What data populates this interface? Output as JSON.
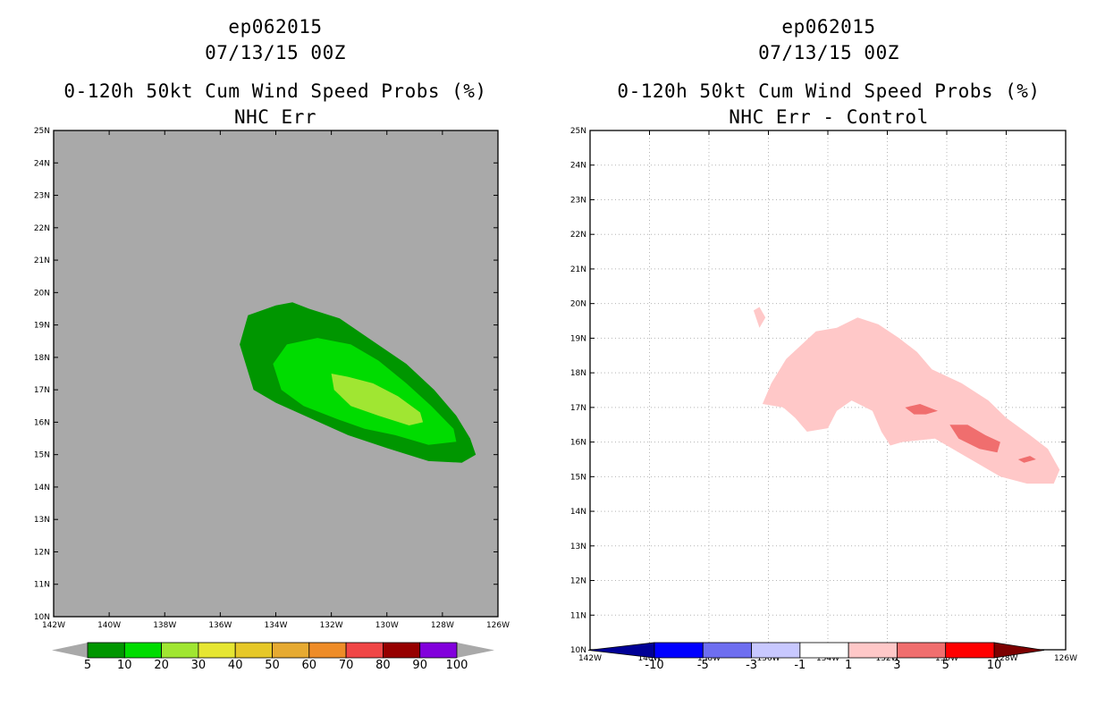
{
  "chart_data": [
    {
      "type": "filled-contour-map",
      "title_lines": [
        "ep062015",
        "07/13/15 00Z",
        "0-120h 50kt Cum Wind Speed Probs (%)",
        "NHC Err"
      ],
      "background_color": "#a9a9a9",
      "x_ticks": [
        "142W",
        "140W",
        "138W",
        "136W",
        "134W",
        "132W",
        "130W",
        "128W",
        "126W"
      ],
      "y_ticks": [
        "10N",
        "11N",
        "12N",
        "13N",
        "14N",
        "15N",
        "16N",
        "17N",
        "18N",
        "19N",
        "20N",
        "21N",
        "22N",
        "23N",
        "24N",
        "25N"
      ],
      "lon_range": [
        -142,
        -126
      ],
      "lat_range": [
        10,
        25
      ],
      "colorbar": {
        "levels": [
          "5",
          "10",
          "20",
          "30",
          "40",
          "50",
          "60",
          "70",
          "80",
          "90",
          "100"
        ],
        "colors": [
          "#009600",
          "#00dc00",
          "#a0e632",
          "#e6e632",
          "#e6c828",
          "#e6aa32",
          "#ee8c28",
          "#f04646",
          "#960000",
          "#8200dc"
        ]
      },
      "regions": [
        {
          "level": "5-10",
          "color": "#009600",
          "points": [
            [
              -135.3,
              18.4
            ],
            [
              -135,
              19.3
            ],
            [
              -134,
              19.6
            ],
            [
              -133.4,
              19.7
            ],
            [
              -132.8,
              19.5
            ],
            [
              -131.7,
              19.2
            ],
            [
              -130.5,
              18.5
            ],
            [
              -129.3,
              17.8
            ],
            [
              -128.3,
              17
            ],
            [
              -127.5,
              16.2
            ],
            [
              -127,
              15.5
            ],
            [
              -126.8,
              15
            ],
            [
              -127.3,
              14.75
            ],
            [
              -128.5,
              14.8
            ],
            [
              -130,
              15.2
            ],
            [
              -131.4,
              15.6
            ],
            [
              -132.7,
              16.1
            ],
            [
              -134,
              16.6
            ],
            [
              -134.8,
              17
            ]
          ]
        },
        {
          "level": "10-20",
          "color": "#00dc00",
          "points": [
            [
              -134.1,
              17.8
            ],
            [
              -133.6,
              18.4
            ],
            [
              -132.5,
              18.6
            ],
            [
              -131.3,
              18.4
            ],
            [
              -130.3,
              17.9
            ],
            [
              -129.3,
              17.2
            ],
            [
              -128.4,
              16.5
            ],
            [
              -127.6,
              15.8
            ],
            [
              -127.5,
              15.4
            ],
            [
              -128.5,
              15.3
            ],
            [
              -129.7,
              15.6
            ],
            [
              -130.8,
              15.8
            ],
            [
              -131.8,
              16.1
            ],
            [
              -133,
              16.5
            ],
            [
              -133.8,
              17
            ]
          ]
        },
        {
          "level": "20-30",
          "color": "#a0e632",
          "points": [
            [
              -132,
              17.5
            ],
            [
              -131.4,
              17.4
            ],
            [
              -130.5,
              17.2
            ],
            [
              -129.6,
              16.8
            ],
            [
              -128.8,
              16.3
            ],
            [
              -128.7,
              16
            ],
            [
              -129.2,
              15.9
            ],
            [
              -130.3,
              16.2
            ],
            [
              -131.3,
              16.5
            ],
            [
              -131.9,
              17
            ]
          ]
        }
      ]
    },
    {
      "type": "filled-contour-map",
      "title_lines": [
        "ep062015",
        "07/13/15 00Z",
        "0-120h 50kt Cum Wind Speed Probs (%)",
        "NHC Err - Control"
      ],
      "background_color": "#ffffff",
      "grid": true,
      "x_ticks": [
        "142W",
        "140W",
        "138W",
        "136W",
        "134W",
        "132W",
        "130W",
        "128W",
        "126W"
      ],
      "y_ticks": [
        "10N",
        "11N",
        "12N",
        "13N",
        "14N",
        "15N",
        "16N",
        "17N",
        "18N",
        "19N",
        "20N",
        "21N",
        "22N",
        "23N",
        "24N",
        "25N"
      ],
      "lon_range": [
        -142,
        -126
      ],
      "lat_range": [
        10,
        25
      ],
      "colorbar": {
        "levels": [
          "-10",
          "-5",
          "-3",
          "-1",
          "1",
          "3",
          "5",
          "10"
        ],
        "colors": [
          "#000096",
          "#0000ff",
          "#6e6ef0",
          "#c8c8ff",
          "#ffffff",
          "#ffc8c8",
          "#f06e6e",
          "#ff0000",
          "#7d0000"
        ]
      },
      "regions": [
        {
          "level": "1-3",
          "color": "#ffc8c8",
          "points": [
            [
              -136.2,
              17.1
            ],
            [
              -135.9,
              17.7
            ],
            [
              -135.4,
              18.4
            ],
            [
              -134.9,
              18.8
            ],
            [
              -134.4,
              19.2
            ],
            [
              -133.7,
              19.3
            ],
            [
              -133,
              19.6
            ],
            [
              -132.3,
              19.4
            ],
            [
              -131.6,
              19
            ],
            [
              -131,
              18.6
            ],
            [
              -130.5,
              18.1
            ],
            [
              -129.5,
              17.7
            ],
            [
              -128.6,
              17.2
            ],
            [
              -128,
              16.7
            ],
            [
              -127.2,
              16.2
            ],
            [
              -126.6,
              15.8
            ],
            [
              -126.2,
              15.2
            ],
            [
              -126.4,
              14.8
            ],
            [
              -127.3,
              14.8
            ],
            [
              -128.2,
              15
            ],
            [
              -129,
              15.4
            ],
            [
              -129.8,
              15.8
            ],
            [
              -130.4,
              16.1
            ],
            [
              -131.5,
              16
            ],
            [
              -131.9,
              15.9
            ],
            [
              -132.2,
              16.3
            ],
            [
              -132.5,
              16.9
            ],
            [
              -133.2,
              17.2
            ],
            [
              -133.7,
              16.9
            ],
            [
              -134,
              16.4
            ],
            [
              -134.7,
              16.3
            ],
            [
              -135.1,
              16.7
            ],
            [
              -135.5,
              17
            ]
          ]
        },
        {
          "level": "1-3",
          "color": "#ffc8c8",
          "points": [
            [
              -136.5,
              19.8
            ],
            [
              -136.3,
              19.9
            ],
            [
              -136.1,
              19.6
            ],
            [
              -136.3,
              19.3
            ]
          ]
        },
        {
          "level": "3-5",
          "color": "#f06e6e",
          "points": [
            [
              -131.4,
              17
            ],
            [
              -130.9,
              17.1
            ],
            [
              -130.3,
              16.9
            ],
            [
              -130.7,
              16.8
            ],
            [
              -131.1,
              16.8
            ]
          ]
        },
        {
          "level": "3-5",
          "color": "#f06e6e",
          "points": [
            [
              -129.9,
              16.5
            ],
            [
              -129.3,
              16.5
            ],
            [
              -128.7,
              16.2
            ],
            [
              -128.2,
              16
            ],
            [
              -128.3,
              15.7
            ],
            [
              -128.9,
              15.8
            ],
            [
              -129.6,
              16.1
            ]
          ]
        },
        {
          "level": "3-5",
          "color": "#f06e6e",
          "points": [
            [
              -127.6,
              15.5
            ],
            [
              -127.2,
              15.6
            ],
            [
              -127,
              15.5
            ],
            [
              -127.4,
              15.4
            ]
          ]
        }
      ]
    }
  ]
}
